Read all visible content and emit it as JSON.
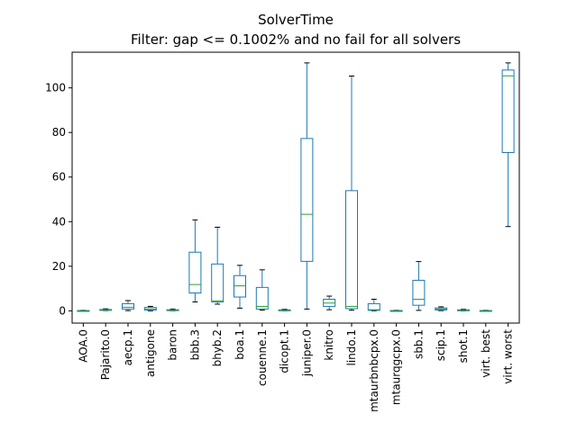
{
  "chart_data": {
    "type": "box",
    "title": "SolverTime",
    "subtitle": "Filter: gap <= 0.1002% and no fail for all solvers",
    "xlabel": "",
    "ylabel": "",
    "ylim": [
      -5.5,
      116
    ],
    "yticks": [
      0,
      20,
      40,
      60,
      80,
      100
    ],
    "grid": false,
    "colors": {
      "box": "#1f77b4",
      "median": "#2ca02c",
      "whisker": "#1f77b4",
      "cap": "#000000"
    },
    "categories": [
      "AOA.0",
      "Pajarito.0",
      "aecp.1",
      "antigone",
      "baron",
      "bbb.3",
      "bhyb.2",
      "boa.1",
      "couenne.1",
      "dicopt.1",
      "juniper.0",
      "knitro",
      "lindo.1",
      "mtaurbnbcpx.0",
      "mtaurqgcpx.0",
      "sbb.1",
      "scip.1",
      "shot.1",
      "virt. best",
      "virt. worst"
    ],
    "boxes": [
      {
        "min": 0.0,
        "q1": 0.05,
        "median": 0.1,
        "q3": 0.15,
        "max": 0.25
      },
      {
        "min": 0.1,
        "q1": 0.25,
        "median": 0.35,
        "q3": 0.6,
        "max": 0.9
      },
      {
        "min": 0.1,
        "q1": 0.8,
        "median": 1.6,
        "q3": 3.2,
        "max": 4.6
      },
      {
        "min": 0.0,
        "q1": 0.3,
        "median": 0.8,
        "q3": 1.5,
        "max": 2.0
      },
      {
        "min": 0.05,
        "q1": 0.15,
        "median": 0.3,
        "q3": 0.5,
        "max": 0.8
      },
      {
        "min": 4.0,
        "q1": 8.0,
        "median": 11.8,
        "q3": 26.3,
        "max": 40.8
      },
      {
        "min": 3.0,
        "q1": 4.0,
        "median": 4.5,
        "q3": 21.0,
        "max": 37.5
      },
      {
        "min": 1.2,
        "q1": 6.2,
        "median": 11.2,
        "q3": 15.8,
        "max": 20.4
      },
      {
        "min": 0.3,
        "q1": 0.8,
        "median": 2.0,
        "q3": 10.5,
        "max": 18.4
      },
      {
        "min": 0.05,
        "q1": 0.15,
        "median": 0.3,
        "q3": 0.45,
        "max": 0.7
      },
      {
        "min": 0.8,
        "q1": 22.2,
        "median": 43.3,
        "q3": 77.3,
        "max": 111.2
      },
      {
        "min": 0.5,
        "q1": 2.0,
        "median": 3.5,
        "q3": 5.2,
        "max": 6.6
      },
      {
        "min": 0.3,
        "q1": 1.0,
        "median": 2.0,
        "q3": 53.9,
        "max": 105.3
      },
      {
        "min": 0.0,
        "q1": 0.2,
        "median": 0.5,
        "q3": 3.2,
        "max": 5.2
      },
      {
        "min": 0.0,
        "q1": 0.05,
        "median": 0.1,
        "q3": 0.15,
        "max": 0.25
      },
      {
        "min": 0.2,
        "q1": 2.5,
        "median": 5.2,
        "q3": 13.7,
        "max": 22.1
      },
      {
        "min": 0.1,
        "q1": 0.4,
        "median": 0.8,
        "q3": 1.3,
        "max": 1.8
      },
      {
        "min": 0.0,
        "q1": 0.1,
        "median": 0.25,
        "q3": 0.45,
        "max": 0.7
      },
      {
        "min": 0.0,
        "q1": 0.05,
        "median": 0.1,
        "q3": 0.15,
        "max": 0.25
      },
      {
        "min": 37.8,
        "q1": 71.0,
        "median": 105.4,
        "q3": 108.0,
        "max": 111.2
      }
    ]
  }
}
